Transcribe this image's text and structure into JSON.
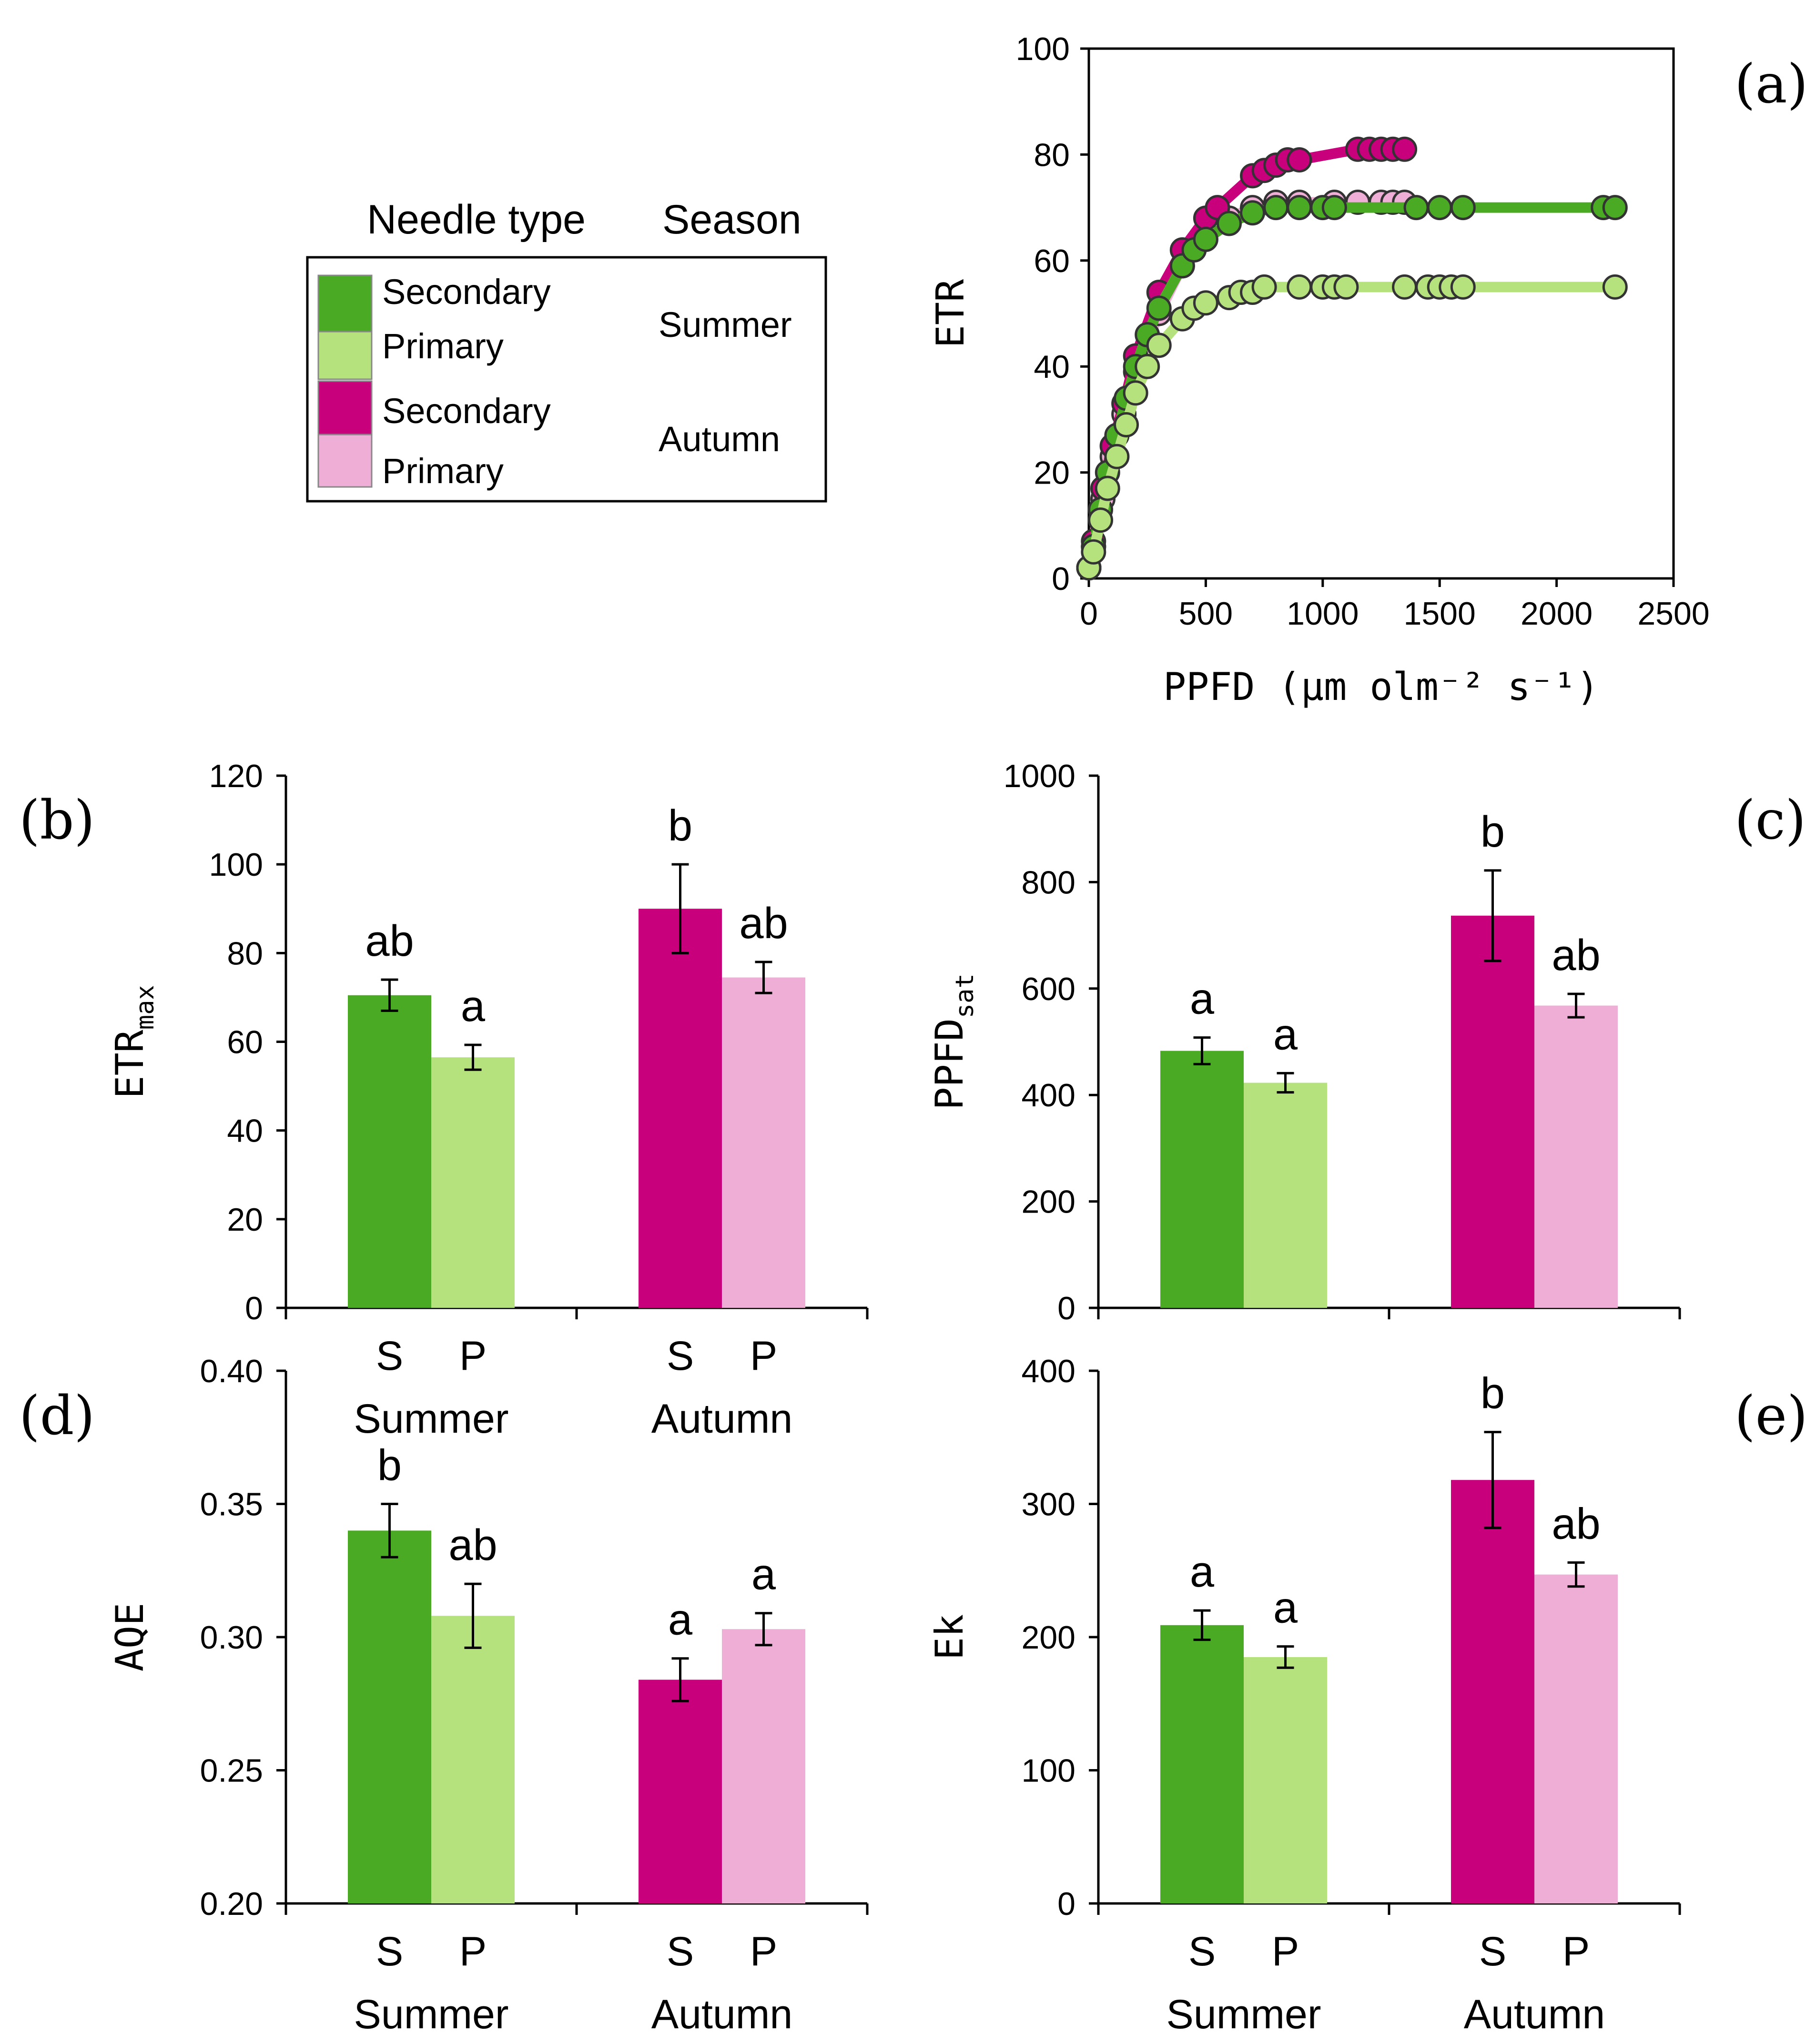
{
  "colors": {
    "summer_secondary": "#4aaa24",
    "summer_primary": "#b6e27e",
    "autumn_secondary": "#c8007c",
    "autumn_primary": "#eeaed6",
    "text": "#000000"
  },
  "legend": {
    "header_needle_type": "Needle type",
    "header_season": "Season",
    "entries": [
      {
        "label": "Secondary",
        "season": "Summer"
      },
      {
        "label": "Primary"
      },
      {
        "label": "Secondary",
        "season": "Autumn"
      },
      {
        "label": "Primary"
      }
    ]
  },
  "chart_data": [
    {
      "panel": "(a)",
      "type": "scatter",
      "xlabel": "PPFD (μm olm⁻² s⁻¹)",
      "ylabel": "ETR",
      "xlim": [
        0,
        2500
      ],
      "ylim": [
        0,
        100
      ],
      "xticks": [
        "0",
        "500",
        "1000",
        "1500",
        "2000",
        "2500"
      ],
      "yticks": [
        "0",
        "20",
        "40",
        "60",
        "80",
        "100"
      ],
      "series": [
        {
          "key": "autumn_primary",
          "x": [
            0,
            20,
            60,
            100,
            150,
            200,
            300,
            400,
            500,
            600,
            700,
            800,
            900,
            1050,
            1150,
            1250,
            1300,
            1350
          ],
          "y": [
            2,
            6,
            15,
            23,
            31,
            39,
            50,
            59,
            65,
            68,
            70,
            71,
            71,
            71,
            71,
            71,
            71,
            71
          ]
        },
        {
          "key": "autumn_secondary",
          "x": [
            0,
            20,
            60,
            100,
            150,
            200,
            300,
            400,
            500,
            550,
            700,
            750,
            800,
            850,
            900,
            1150,
            1200,
            1250,
            1300,
            1350
          ],
          "y": [
            2,
            7,
            17,
            25,
            33,
            42,
            54,
            62,
            68,
            70,
            76,
            77,
            78,
            79,
            79,
            81,
            81,
            81,
            81,
            81
          ]
        },
        {
          "key": "summer_secondary",
          "x": [
            0,
            20,
            50,
            80,
            120,
            160,
            200,
            250,
            300,
            400,
            450,
            500,
            600,
            700,
            800,
            900,
            1000,
            1050,
            1400,
            1500,
            1600,
            2200,
            2250
          ],
          "y": [
            2,
            6,
            13,
            20,
            27,
            34,
            40,
            46,
            51,
            59,
            62,
            64,
            67,
            69,
            70,
            70,
            70,
            70,
            70,
            70,
            70,
            70,
            70
          ]
        },
        {
          "key": "summer_primary",
          "x": [
            0,
            20,
            50,
            80,
            120,
            160,
            200,
            250,
            300,
            400,
            450,
            500,
            600,
            650,
            700,
            750,
            900,
            1000,
            1050,
            1100,
            1350,
            1450,
            1500,
            1550,
            1600,
            2250
          ],
          "y": [
            2,
            5,
            11,
            17,
            23,
            29,
            35,
            40,
            44,
            49,
            51,
            52,
            53,
            54,
            54,
            55,
            55,
            55,
            55,
            55,
            55,
            55,
            55,
            55,
            55,
            55
          ]
        }
      ]
    },
    {
      "panel": "(b)",
      "type": "bar",
      "ylabel": "ETR",
      "ylabel_sub": "max",
      "ylim": [
        0,
        120
      ],
      "yticks": [
        "0",
        "20",
        "40",
        "60",
        "80",
        "100",
        "120"
      ],
      "groups": [
        "Summer",
        "Autumn"
      ],
      "categories": [
        "S",
        "P"
      ],
      "series": [
        {
          "key": "summer_secondary",
          "value": 70.5,
          "err": 3.5,
          "sig": "ab"
        },
        {
          "key": "summer_primary",
          "value": 56.5,
          "err": 2.8,
          "sig": "a"
        },
        {
          "key": "autumn_secondary",
          "value": 90,
          "err": 10,
          "sig": "b"
        },
        {
          "key": "autumn_primary",
          "value": 74.5,
          "err": 3.5,
          "sig": "ab"
        }
      ]
    },
    {
      "panel": "(c)",
      "type": "bar",
      "ylabel": "PPFD",
      "ylabel_sub": "sat",
      "ylim": [
        0,
        1000
      ],
      "yticks": [
        "0",
        "200",
        "400",
        "600",
        "800",
        "1000"
      ],
      "groups": [
        "",
        ""
      ],
      "categories": [
        "",
        ""
      ],
      "series": [
        {
          "key": "summer_secondary",
          "value": 483,
          "err": 25,
          "sig": "a"
        },
        {
          "key": "summer_primary",
          "value": 423,
          "err": 18,
          "sig": "a"
        },
        {
          "key": "autumn_secondary",
          "value": 737,
          "err": 85,
          "sig": "b"
        },
        {
          "key": "autumn_primary",
          "value": 568,
          "err": 22,
          "sig": "ab"
        }
      ]
    },
    {
      "panel": "(d)",
      "type": "bar",
      "ylabel": "AQE",
      "ylim": [
        0.2,
        0.4
      ],
      "yticks": [
        "0.20",
        "0.25",
        "0.30",
        "0.35",
        "0.40"
      ],
      "groups": [
        "Summer",
        "Autumn"
      ],
      "categories": [
        "S",
        "P"
      ],
      "series": [
        {
          "key": "summer_secondary",
          "value": 0.34,
          "err": 0.01,
          "sig": "b"
        },
        {
          "key": "summer_primary",
          "value": 0.308,
          "err": 0.012,
          "sig": "ab"
        },
        {
          "key": "autumn_secondary",
          "value": 0.284,
          "err": 0.008,
          "sig": "a"
        },
        {
          "key": "autumn_primary",
          "value": 0.303,
          "err": 0.006,
          "sig": "a"
        }
      ]
    },
    {
      "panel": "(e)",
      "type": "bar",
      "ylabel": "Ek",
      "ylim": [
        0,
        400
      ],
      "yticks": [
        "0",
        "100",
        "200",
        "300",
        "400"
      ],
      "groups": [
        "Summer",
        "Autumn"
      ],
      "categories": [
        "S",
        "P"
      ],
      "series": [
        {
          "key": "summer_secondary",
          "value": 209,
          "err": 11,
          "sig": "a"
        },
        {
          "key": "summer_primary",
          "value": 185,
          "err": 8,
          "sig": "a"
        },
        {
          "key": "autumn_secondary",
          "value": 318,
          "err": 36,
          "sig": "b"
        },
        {
          "key": "autumn_primary",
          "value": 247,
          "err": 9,
          "sig": "ab"
        }
      ]
    }
  ]
}
